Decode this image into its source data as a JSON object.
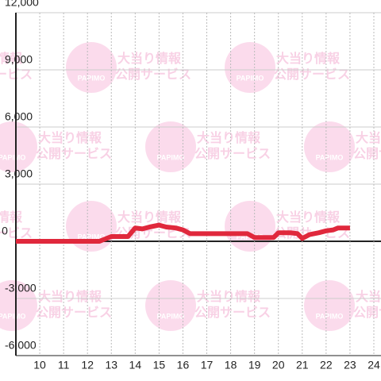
{
  "chart_data": {
    "type": "line",
    "x": [
      9,
      12.5,
      12.8,
      13.0,
      13.3,
      13.7,
      14.0,
      14.3,
      14.6,
      15.0,
      15.3,
      15.7,
      16.0,
      16.3,
      17.0,
      17.5,
      18.0,
      18.7,
      19.0,
      19.5,
      19.8,
      20.0,
      20.5,
      20.8,
      21.0,
      21.3,
      21.7,
      22.0,
      22.3,
      22.5,
      23.0
    ],
    "series": [
      {
        "color": "#e0283c",
        "values": [
          0,
          0,
          150,
          250,
          250,
          250,
          700,
          650,
          750,
          850,
          750,
          700,
          600,
          400,
          400,
          400,
          400,
          400,
          200,
          200,
          200,
          450,
          450,
          400,
          150,
          350,
          450,
          550,
          600,
          700,
          700
        ]
      }
    ],
    "xlim": [
      9,
      24.3
    ],
    "xticks": [
      10,
      11,
      12,
      13,
      14,
      15,
      16,
      17,
      18,
      19,
      20,
      21,
      22,
      23,
      24
    ],
    "ylim": [
      -6000,
      12000
    ],
    "yticks": [
      {
        "value": -6000,
        "label": "-6,000"
      },
      {
        "value": -3000,
        "label": "-3,000"
      },
      0,
      {
        "value": 3000,
        "label": "3,000"
      },
      {
        "value": 6000,
        "label": "6,000"
      },
      {
        "value": 9000,
        "label": "9,000"
      },
      {
        "value": 12000,
        "label": "12,000"
      }
    ],
    "grid": true,
    "watermark": {
      "logo": "PAPIMO",
      "line1": "大当り情報",
      "line2": "公開サービス"
    }
  }
}
